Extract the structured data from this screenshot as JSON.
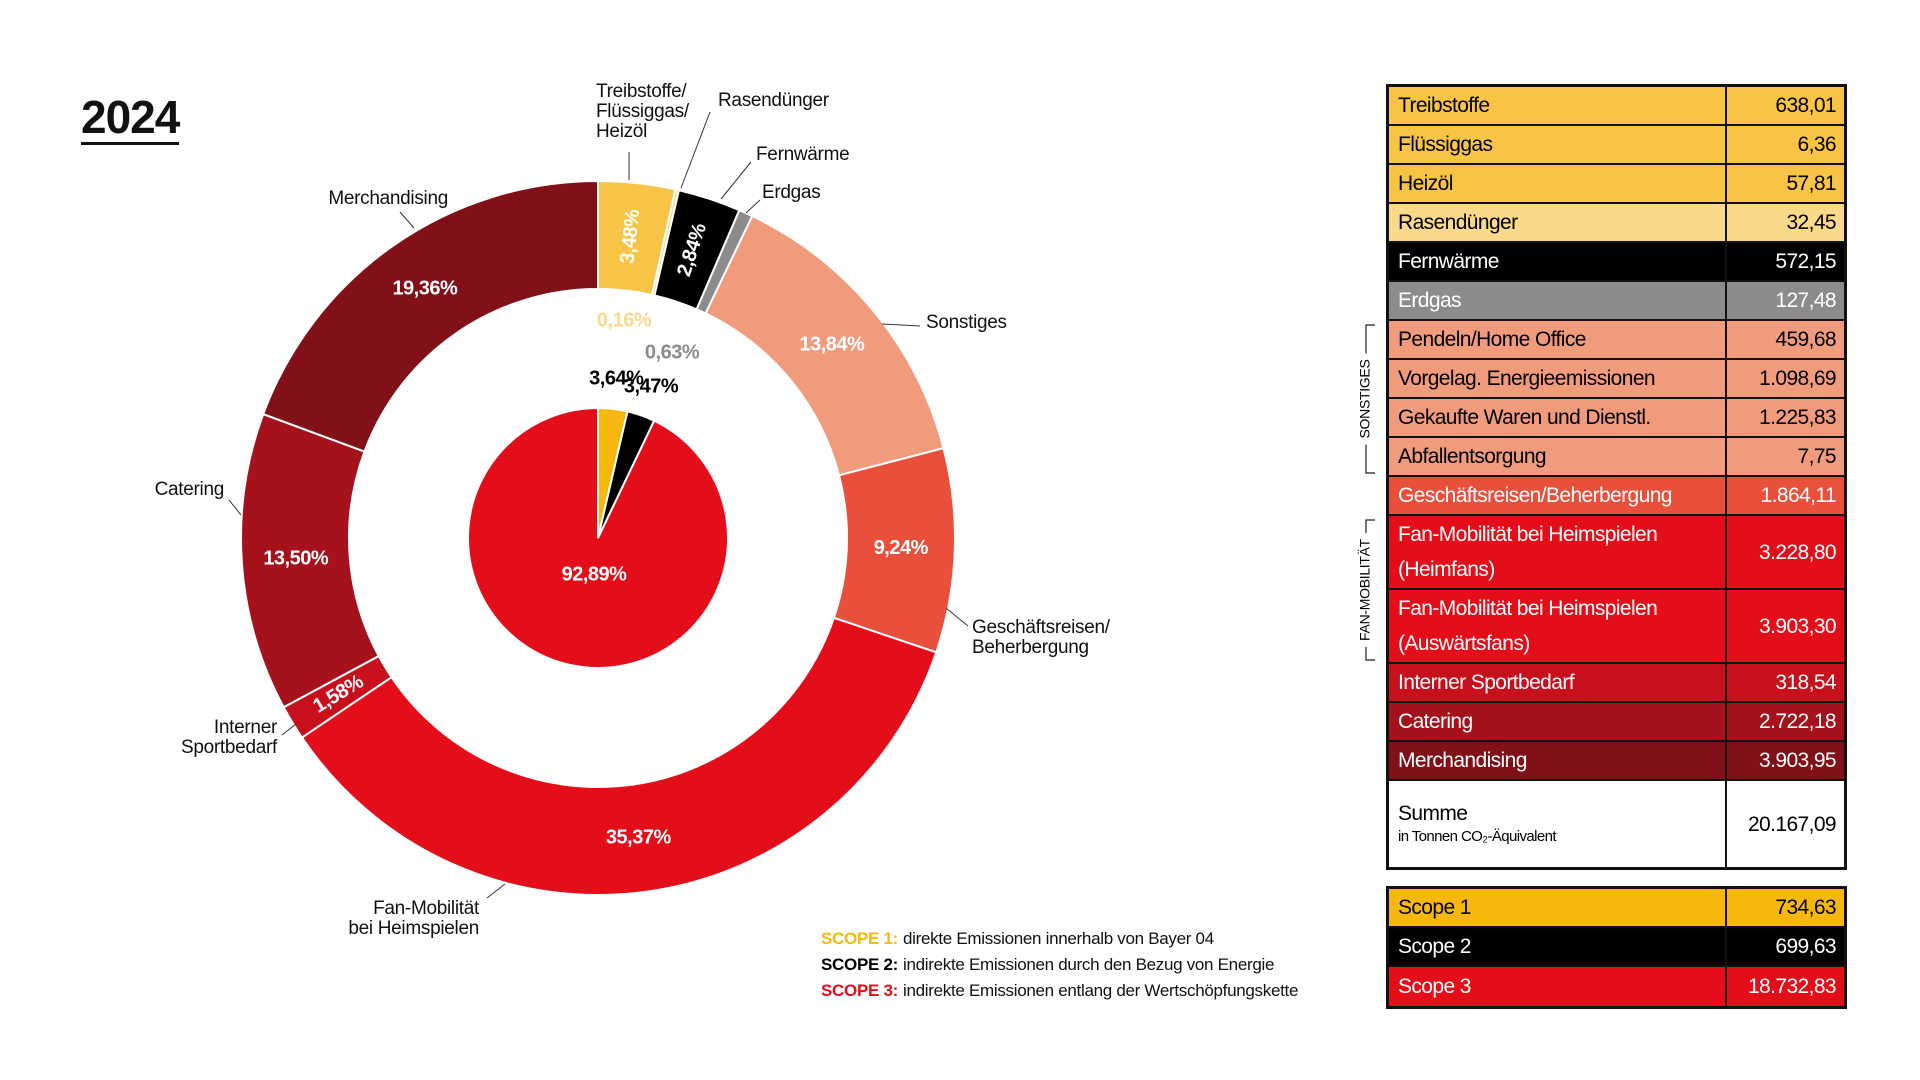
{
  "title": "2024",
  "chart_data": [
    {
      "type": "donut",
      "categories": [
        "Treibstoffe/\nFlüssiggas/\nHeizöl",
        "Rasendünger",
        "Fernwärme",
        "Erdgas",
        "Sonstiges",
        "Geschäftsreisen/\nBeherbergung",
        "Fan-Mobilität\nbei Heimspielen",
        "Interner\nSportbedarf",
        "Catering",
        "Merchandising"
      ],
      "values": [
        3.48,
        0.16,
        2.84,
        0.63,
        13.84,
        9.24,
        35.37,
        1.58,
        13.5,
        19.36
      ],
      "value_labels": [
        "3,48%",
        "0,16%",
        "2,84%",
        "0,63%",
        "13,84%",
        "9,24%",
        "35,37%",
        "1,58%",
        "13,50%",
        "19,36%"
      ],
      "colors": [
        "#f8c446",
        "#fbd98a",
        "#000000",
        "#8c8c8c",
        "#f19b7d",
        "#e8503c",
        "#e30e1a",
        "#c8101d",
        "#a5121b",
        "#821019"
      ]
    },
    {
      "type": "pie",
      "values": [
        3.64,
        3.47,
        92.89
      ],
      "value_labels": [
        "3,64%",
        "3,47%",
        "92,89%"
      ],
      "colors": [
        "#f6b80f",
        "#000000",
        "#e30e1a"
      ]
    }
  ],
  "legend": [
    {
      "label": "SCOPE 1:",
      "text": "direkte Emissionen innerhalb von Bayer 04",
      "color": "#f6b80f"
    },
    {
      "label": "SCOPE 2:",
      "text": "indirekte Emissionen durch den Bezug von Energie",
      "color": "#000000"
    },
    {
      "label": "SCOPE 3:",
      "text": "indirekte Emissionen entlang der Wertschöpfungskette",
      "color": "#e30e1a"
    }
  ],
  "table": {
    "groups": [
      "SONSTIGES",
      "FAN-MOBILITÄT"
    ],
    "rows": [
      {
        "label": "Treibstoffe",
        "value": "638,01",
        "color": "#f8c446",
        "text_color": "#000000"
      },
      {
        "label": "Flüssiggas",
        "value": "6,36",
        "color": "#f8c446",
        "text_color": "#000000"
      },
      {
        "label": "Heizöl",
        "value": "57,81",
        "color": "#f8c446",
        "text_color": "#000000"
      },
      {
        "label": "Rasendünger",
        "value": "32,45",
        "color": "#fbd98a",
        "text_color": "#000000"
      },
      {
        "label": "Fernwärme",
        "value": "572,15",
        "color": "#000000",
        "text_color": "#ffffff"
      },
      {
        "label": "Erdgas",
        "value": "127,48",
        "color": "#8c8c8c",
        "text_color": "#ffffff"
      },
      {
        "label": "Pendeln/Home Office",
        "value": "459,68",
        "color": "#f19b7d",
        "text_color": "#000000"
      },
      {
        "label": "Vorgelag. Energieemissionen",
        "value": "1.098,69",
        "color": "#f19b7d",
        "text_color": "#000000"
      },
      {
        "label": "Gekaufte Waren und Dienstl.",
        "value": "1.225,83",
        "color": "#f19b7d",
        "text_color": "#000000"
      },
      {
        "label": "Abfallentsorgung",
        "value": "7,75",
        "color": "#f19b7d",
        "text_color": "#000000"
      },
      {
        "label": "Geschäftsreisen/Beherbergung",
        "value": "1.864,11",
        "color": "#e8503c",
        "text_color": "#ffffff"
      },
      {
        "label": "Fan-Mobilität bei Heimspielen\n(Heimfans)",
        "value": "3.228,80",
        "color": "#e30e1a",
        "text_color": "#ffffff"
      },
      {
        "label": "Fan-Mobilität bei Heimspielen\n(Auswärtsfans)",
        "value": "3.903,30",
        "color": "#e30e1a",
        "text_color": "#ffffff"
      },
      {
        "label": "Interner Sportbedarf",
        "value": "318,54",
        "color": "#c8101d",
        "text_color": "#ffffff"
      },
      {
        "label": "Catering",
        "value": "2.722,18",
        "color": "#a5121b",
        "text_color": "#ffffff"
      },
      {
        "label": "Merchandising",
        "value": "3.903,95",
        "color": "#821019",
        "text_color": "#ffffff"
      }
    ],
    "total": {
      "label": "Summe",
      "note": "in Tonnen CO₂-Äquivalent",
      "value": "20.167,09"
    },
    "scopes": [
      {
        "label": "Scope 1",
        "value": "734,63",
        "color": "#f6b80f",
        "text_color": "#000000"
      },
      {
        "label": "Scope 2",
        "value": "699,63",
        "color": "#000000",
        "text_color": "#ffffff"
      },
      {
        "label": "Scope 3",
        "value": "18.732,83",
        "color": "#e30e1a",
        "text_color": "#ffffff"
      }
    ]
  }
}
